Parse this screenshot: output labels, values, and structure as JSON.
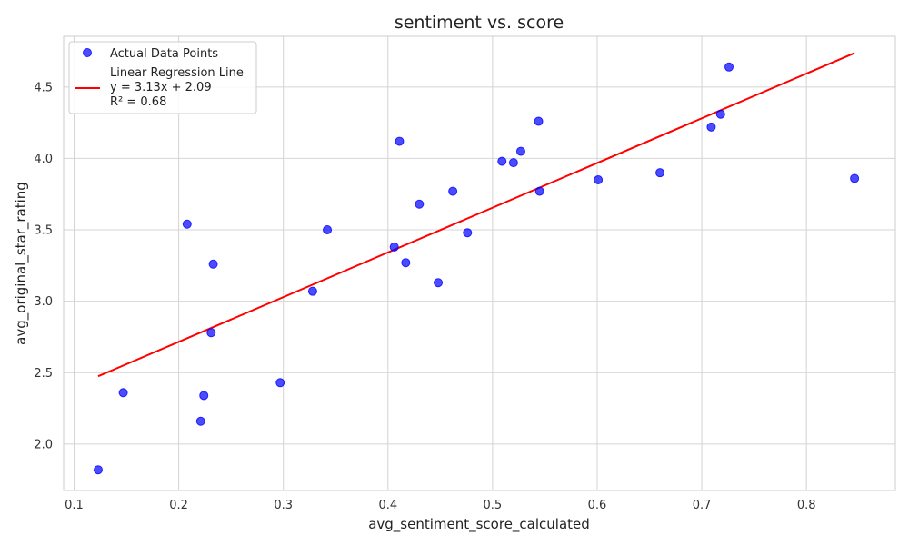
{
  "chart_data": {
    "type": "scatter",
    "title": "sentiment vs. score",
    "xlabel": "avg_sentiment_score_calculated",
    "ylabel": "avg_original_star_rating",
    "xlim": [
      0.09,
      0.885
    ],
    "ylim": [
      1.675,
      4.855
    ],
    "xticks": [
      "0.1",
      "0.2",
      "0.3",
      "0.4",
      "0.5",
      "0.6",
      "0.7",
      "0.8"
    ],
    "yticks": [
      "2.0",
      "2.5",
      "3.0",
      "3.5",
      "4.0",
      "4.5"
    ],
    "grid": true,
    "legend_position": "top-left",
    "series": [
      {
        "name": "Actual Data Points",
        "kind": "scatter",
        "color": "#0000ff",
        "points": [
          [
            0.123,
            1.82
          ],
          [
            0.147,
            2.36
          ],
          [
            0.208,
            3.54
          ],
          [
            0.221,
            2.16
          ],
          [
            0.224,
            2.34
          ],
          [
            0.231,
            2.78
          ],
          [
            0.233,
            3.26
          ],
          [
            0.297,
            2.43
          ],
          [
            0.328,
            3.07
          ],
          [
            0.342,
            3.5
          ],
          [
            0.406,
            3.38
          ],
          [
            0.411,
            4.12
          ],
          [
            0.417,
            3.27
          ],
          [
            0.43,
            3.68
          ],
          [
            0.448,
            3.13
          ],
          [
            0.462,
            3.77
          ],
          [
            0.476,
            3.48
          ],
          [
            0.509,
            3.98
          ],
          [
            0.52,
            3.97
          ],
          [
            0.527,
            4.05
          ],
          [
            0.544,
            4.26
          ],
          [
            0.545,
            3.77
          ],
          [
            0.601,
            3.85
          ],
          [
            0.66,
            3.9
          ],
          [
            0.709,
            4.22
          ],
          [
            0.718,
            4.31
          ],
          [
            0.726,
            4.64
          ],
          [
            0.846,
            3.86
          ]
        ]
      },
      {
        "name": "Linear Regression Line",
        "kind": "line",
        "color": "#ff0000",
        "slope": 3.13,
        "intercept": 2.09,
        "x_range": [
          0.123,
          0.846
        ],
        "equation": "y = 3.13x + 2.09",
        "r2": "R² = 0.68"
      }
    ]
  }
}
